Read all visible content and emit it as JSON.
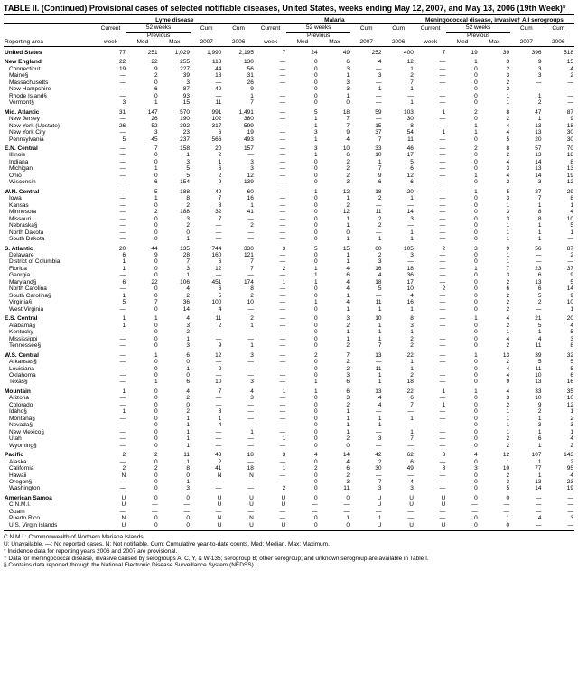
{
  "title": "TABLE II. (Continued) Provisional cases of selected notifiable diseases, United States, weeks ending May 12, 2007, and May 13, 2006 (19th Week)*",
  "diseases": [
    "Lyme disease",
    "Malaria",
    "Meningococcal disease, invasive†\nAll serogroups"
  ],
  "subheaders": {
    "current": "Current",
    "previous": "Previous",
    "weeks52": "52 weeks",
    "cum": "Cum"
  },
  "colheaders": [
    "Reporting area",
    "week",
    "Med",
    "Max",
    "2007",
    "2006",
    "week",
    "Med",
    "Max",
    "2007",
    "2006",
    "week",
    "Med",
    "Max",
    "2007",
    "2006"
  ],
  "rows": [
    {
      "r": 1,
      "a": "United States",
      "v": [
        "77",
        "251",
        "1,029",
        "1,990",
        "2,195",
        "7",
        "24",
        "49",
        "252",
        "400",
        "7",
        "19",
        "39",
        "396",
        "518"
      ]
    },
    {
      "r": 1,
      "a": "New England",
      "v": [
        "22",
        "22",
        "255",
        "113",
        "130",
        "—",
        "0",
        "6",
        "4",
        "12",
        "—",
        "1",
        "3",
        "9",
        "15"
      ]
    },
    {
      "r": 0,
      "a": "Connecticut",
      "v": [
        "19",
        "9",
        "227",
        "44",
        "56",
        "—",
        "0",
        "3",
        "—",
        "1",
        "—",
        "0",
        "2",
        "3",
        "4"
      ]
    },
    {
      "r": 0,
      "a": "Maine§",
      "v": [
        "—",
        "2",
        "39",
        "18",
        "31",
        "—",
        "0",
        "1",
        "3",
        "2",
        "—",
        "0",
        "3",
        "3",
        "2"
      ]
    },
    {
      "r": 0,
      "a": "Massachusetts",
      "v": [
        "—",
        "0",
        "3",
        "—",
        "26",
        "—",
        "0",
        "3",
        "—",
        "7",
        "—",
        "0",
        "2",
        "—",
        "—"
      ]
    },
    {
      "r": 0,
      "a": "New Hampshire",
      "v": [
        "—",
        "6",
        "87",
        "40",
        "9",
        "—",
        "0",
        "3",
        "1",
        "1",
        "—",
        "0",
        "2",
        "—",
        "—"
      ]
    },
    {
      "r": 0,
      "a": "Rhode Island§",
      "v": [
        "—",
        "0",
        "93",
        "—",
        "1",
        "—",
        "0",
        "1",
        "—",
        "—",
        "—",
        "0",
        "1",
        "1",
        "—"
      ]
    },
    {
      "r": 0,
      "a": "Vermont§",
      "v": [
        "3",
        "1",
        "15",
        "11",
        "7",
        "—",
        "0",
        "0",
        "—",
        "1",
        "—",
        "0",
        "1",
        "2",
        "—"
      ]
    },
    {
      "r": 1,
      "a": "Mid. Atlantic",
      "v": [
        "31",
        "147",
        "570",
        "991",
        "1,491",
        "—",
        "5",
        "18",
        "59",
        "103",
        "1",
        "2",
        "8",
        "47",
        "87"
      ]
    },
    {
      "r": 0,
      "a": "New Jersey",
      "v": [
        "—",
        "26",
        "190",
        "102",
        "380",
        "—",
        "1",
        "7",
        "—",
        "30",
        "—",
        "0",
        "2",
        "1",
        "9"
      ]
    },
    {
      "r": 0,
      "a": "New York (Upstate)",
      "v": [
        "26",
        "52",
        "392",
        "317",
        "599",
        "—",
        "1",
        "7",
        "15",
        "8",
        "—",
        "1",
        "4",
        "13",
        "18"
      ]
    },
    {
      "r": 0,
      "a": "New York City",
      "v": [
        "—",
        "3",
        "23",
        "6",
        "19",
        "—",
        "3",
        "9",
        "37",
        "54",
        "1",
        "1",
        "4",
        "13",
        "30"
      ]
    },
    {
      "r": 0,
      "a": "Pennsylvania",
      "v": [
        "5",
        "45",
        "237",
        "566",
        "493",
        "—",
        "1",
        "4",
        "7",
        "11",
        "—",
        "0",
        "5",
        "20",
        "30"
      ]
    },
    {
      "r": 1,
      "a": "E.N. Central",
      "v": [
        "—",
        "7",
        "158",
        "20",
        "157",
        "—",
        "3",
        "10",
        "33",
        "46",
        "—",
        "2",
        "8",
        "57",
        "70"
      ]
    },
    {
      "r": 0,
      "a": "Illinois",
      "v": [
        "—",
        "0",
        "1",
        "2",
        "—",
        "—",
        "1",
        "6",
        "10",
        "17",
        "—",
        "0",
        "2",
        "13",
        "18"
      ]
    },
    {
      "r": 0,
      "a": "Indiana",
      "v": [
        "—",
        "0",
        "3",
        "1",
        "3",
        "—",
        "0",
        "2",
        "1",
        "5",
        "—",
        "0",
        "4",
        "14",
        "8"
      ]
    },
    {
      "r": 0,
      "a": "Michigan",
      "v": [
        "—",
        "1",
        "5",
        "6",
        "3",
        "—",
        "0",
        "2",
        "7",
        "6",
        "—",
        "0",
        "3",
        "13",
        "13"
      ]
    },
    {
      "r": 0,
      "a": "Ohio",
      "v": [
        "—",
        "0",
        "5",
        "2",
        "12",
        "—",
        "0",
        "2",
        "9",
        "12",
        "—",
        "1",
        "4",
        "14",
        "19"
      ]
    },
    {
      "r": 0,
      "a": "Wisconsin",
      "v": [
        "—",
        "6",
        "154",
        "9",
        "139",
        "—",
        "0",
        "3",
        "6",
        "6",
        "—",
        "0",
        "2",
        "3",
        "12"
      ]
    },
    {
      "r": 1,
      "a": "W.N. Central",
      "v": [
        "—",
        "5",
        "188",
        "49",
        "60",
        "—",
        "1",
        "12",
        "18",
        "20",
        "—",
        "1",
        "5",
        "27",
        "29"
      ]
    },
    {
      "r": 0,
      "a": "Iowa",
      "v": [
        "—",
        "1",
        "8",
        "7",
        "16",
        "—",
        "0",
        "1",
        "2",
        "1",
        "—",
        "0",
        "3",
        "7",
        "8"
      ]
    },
    {
      "r": 0,
      "a": "Kansas",
      "v": [
        "—",
        "0",
        "2",
        "3",
        "1",
        "—",
        "0",
        "2",
        "—",
        "—",
        "—",
        "0",
        "1",
        "1",
        "1"
      ]
    },
    {
      "r": 0,
      "a": "Minnesota",
      "v": [
        "—",
        "2",
        "188",
        "32",
        "41",
        "—",
        "0",
        "12",
        "11",
        "14",
        "—",
        "0",
        "3",
        "8",
        "4"
      ]
    },
    {
      "r": 0,
      "a": "Missouri",
      "v": [
        "—",
        "0",
        "3",
        "7",
        "—",
        "—",
        "0",
        "1",
        "2",
        "3",
        "—",
        "0",
        "3",
        "8",
        "10"
      ]
    },
    {
      "r": 0,
      "a": "Nebraska§",
      "v": [
        "—",
        "0",
        "2",
        "—",
        "2",
        "—",
        "0",
        "1",
        "2",
        "—",
        "—",
        "0",
        "1",
        "1",
        "5"
      ]
    },
    {
      "r": 0,
      "a": "North Dakota",
      "v": [
        "—",
        "0",
        "0",
        "—",
        "—",
        "—",
        "0",
        "0",
        "—",
        "1",
        "—",
        "0",
        "1",
        "1",
        "1"
      ]
    },
    {
      "r": 0,
      "a": "South Dakota",
      "v": [
        "—",
        "0",
        "1",
        "—",
        "—",
        "—",
        "0",
        "1",
        "1",
        "1",
        "—",
        "0",
        "1",
        "1",
        "—"
      ]
    },
    {
      "r": 1,
      "a": "S. Atlantic",
      "v": [
        "20",
        "44",
        "135",
        "744",
        "330",
        "3",
        "5",
        "15",
        "60",
        "105",
        "2",
        "3",
        "9",
        "56",
        "87"
      ]
    },
    {
      "r": 0,
      "a": "Delaware",
      "v": [
        "6",
        "9",
        "28",
        "160",
        "121",
        "—",
        "0",
        "1",
        "2",
        "3",
        "—",
        "0",
        "1",
        "—",
        "2"
      ]
    },
    {
      "r": 0,
      "a": "District of Columbia",
      "v": [
        "1",
        "0",
        "7",
        "6",
        "7",
        "—",
        "0",
        "1",
        "3",
        "—",
        "—",
        "0",
        "1",
        "—",
        "—"
      ]
    },
    {
      "r": 0,
      "a": "Florida",
      "v": [
        "1",
        "0",
        "3",
        "12",
        "7",
        "2",
        "1",
        "4",
        "16",
        "18",
        "—",
        "1",
        "7",
        "23",
        "37"
      ]
    },
    {
      "r": 0,
      "a": "Georgia",
      "v": [
        "—",
        "0",
        "1",
        "—",
        "—",
        "—",
        "1",
        "6",
        "4",
        "36",
        "—",
        "0",
        "3",
        "6",
        "9"
      ]
    },
    {
      "r": 0,
      "a": "Maryland§",
      "v": [
        "6",
        "22",
        "106",
        "451",
        "174",
        "1",
        "1",
        "4",
        "18",
        "17",
        "—",
        "0",
        "2",
        "13",
        "5"
      ]
    },
    {
      "r": 0,
      "a": "North Carolina",
      "v": [
        "—",
        "0",
        "4",
        "6",
        "8",
        "—",
        "0",
        "4",
        "5",
        "10",
        "2",
        "0",
        "6",
        "6",
        "14"
      ]
    },
    {
      "r": 0,
      "a": "South Carolina§",
      "v": [
        "1",
        "0",
        "2",
        "5",
        "2",
        "—",
        "0",
        "1",
        "—",
        "4",
        "—",
        "0",
        "2",
        "5",
        "9"
      ]
    },
    {
      "r": 0,
      "a": "Virginia§",
      "v": [
        "5",
        "7",
        "36",
        "100",
        "10",
        "—",
        "1",
        "4",
        "11",
        "16",
        "—",
        "0",
        "2",
        "2",
        "10"
      ]
    },
    {
      "r": 0,
      "a": "West Virginia",
      "v": [
        "—",
        "0",
        "14",
        "4",
        "—",
        "—",
        "0",
        "1",
        "1",
        "1",
        "—",
        "0",
        "2",
        "—",
        "1"
      ]
    },
    {
      "r": 1,
      "a": "E.S. Central",
      "v": [
        "1",
        "1",
        "4",
        "11",
        "2",
        "—",
        "0",
        "3",
        "10",
        "8",
        "—",
        "1",
        "4",
        "21",
        "20"
      ]
    },
    {
      "r": 0,
      "a": "Alabama§",
      "v": [
        "1",
        "0",
        "3",
        "2",
        "1",
        "—",
        "0",
        "2",
        "1",
        "3",
        "—",
        "0",
        "2",
        "5",
        "4"
      ]
    },
    {
      "r": 0,
      "a": "Kentucky",
      "v": [
        "—",
        "0",
        "2",
        "—",
        "—",
        "—",
        "0",
        "1",
        "1",
        "1",
        "—",
        "0",
        "1",
        "1",
        "5"
      ]
    },
    {
      "r": 0,
      "a": "Mississippi",
      "v": [
        "—",
        "0",
        "1",
        "—",
        "—",
        "—",
        "0",
        "1",
        "1",
        "2",
        "—",
        "0",
        "4",
        "4",
        "3"
      ]
    },
    {
      "r": 0,
      "a": "Tennessee§",
      "v": [
        "—",
        "0",
        "3",
        "9",
        "1",
        "—",
        "0",
        "2",
        "7",
        "2",
        "—",
        "0",
        "2",
        "11",
        "8"
      ]
    },
    {
      "r": 1,
      "a": "W.S. Central",
      "v": [
        "—",
        "1",
        "6",
        "12",
        "3",
        "—",
        "2",
        "7",
        "13",
        "22",
        "—",
        "1",
        "13",
        "39",
        "32"
      ]
    },
    {
      "r": 0,
      "a": "Arkansas§",
      "v": [
        "—",
        "0",
        "0",
        "—",
        "—",
        "—",
        "0",
        "2",
        "—",
        "1",
        "—",
        "0",
        "2",
        "5",
        "5"
      ]
    },
    {
      "r": 0,
      "a": "Louisiana",
      "v": [
        "—",
        "0",
        "1",
        "2",
        "—",
        "—",
        "0",
        "2",
        "11",
        "1",
        "—",
        "0",
        "4",
        "11",
        "5"
      ]
    },
    {
      "r": 0,
      "a": "Oklahoma",
      "v": [
        "—",
        "0",
        "0",
        "—",
        "—",
        "—",
        "0",
        "3",
        "1",
        "2",
        "—",
        "0",
        "4",
        "10",
        "6"
      ]
    },
    {
      "r": 0,
      "a": "Texas§",
      "v": [
        "—",
        "1",
        "6",
        "10",
        "3",
        "—",
        "1",
        "6",
        "1",
        "18",
        "—",
        "0",
        "9",
        "13",
        "16"
      ]
    },
    {
      "r": 1,
      "a": "Mountain",
      "v": [
        "1",
        "0",
        "4",
        "7",
        "4",
        "1",
        "1",
        "6",
        "13",
        "22",
        "1",
        "1",
        "4",
        "33",
        "35"
      ]
    },
    {
      "r": 0,
      "a": "Arizona",
      "v": [
        "—",
        "0",
        "2",
        "—",
        "3",
        "—",
        "0",
        "3",
        "4",
        "6",
        "—",
        "0",
        "3",
        "10",
        "10"
      ]
    },
    {
      "r": 0,
      "a": "Colorado",
      "v": [
        "—",
        "0",
        "0",
        "—",
        "—",
        "—",
        "0",
        "2",
        "4",
        "7",
        "1",
        "0",
        "2",
        "9",
        "12"
      ]
    },
    {
      "r": 0,
      "a": "Idaho§",
      "v": [
        "1",
        "0",
        "2",
        "3",
        "—",
        "—",
        "0",
        "1",
        "—",
        "—",
        "—",
        "0",
        "1",
        "2",
        "1"
      ]
    },
    {
      "r": 0,
      "a": "Montana§",
      "v": [
        "—",
        "0",
        "1",
        "1",
        "—",
        "—",
        "0",
        "1",
        "1",
        "1",
        "—",
        "0",
        "1",
        "1",
        "2"
      ]
    },
    {
      "r": 0,
      "a": "Nevada§",
      "v": [
        "—",
        "0",
        "1",
        "4",
        "—",
        "—",
        "0",
        "1",
        "1",
        "—",
        "—",
        "0",
        "1",
        "3",
        "3"
      ]
    },
    {
      "r": 0,
      "a": "New Mexico§",
      "v": [
        "—",
        "0",
        "1",
        "—",
        "1",
        "—",
        "0",
        "1",
        "—",
        "1",
        "—",
        "0",
        "1",
        "1",
        "1"
      ]
    },
    {
      "r": 0,
      "a": "Utah",
      "v": [
        "—",
        "0",
        "1",
        "—",
        "—",
        "1",
        "0",
        "2",
        "3",
        "7",
        "—",
        "0",
        "2",
        "6",
        "4"
      ]
    },
    {
      "r": 0,
      "a": "Wyoming§",
      "v": [
        "—",
        "0",
        "1",
        "—",
        "—",
        "—",
        "0",
        "0",
        "—",
        "—",
        "—",
        "0",
        "2",
        "1",
        "2"
      ]
    },
    {
      "r": 1,
      "a": "Pacific",
      "v": [
        "2",
        "2",
        "11",
        "43",
        "18",
        "3",
        "4",
        "14",
        "42",
        "62",
        "3",
        "4",
        "12",
        "107",
        "143"
      ]
    },
    {
      "r": 0,
      "a": "Alaska",
      "v": [
        "—",
        "0",
        "1",
        "2",
        "—",
        "—",
        "0",
        "4",
        "2",
        "6",
        "—",
        "0",
        "1",
        "1",
        "2"
      ]
    },
    {
      "r": 0,
      "a": "California",
      "v": [
        "2",
        "2",
        "8",
        "41",
        "18",
        "1",
        "2",
        "6",
        "30",
        "49",
        "3",
        "3",
        "10",
        "77",
        "95"
      ]
    },
    {
      "r": 0,
      "a": "Hawaii",
      "v": [
        "N",
        "0",
        "0",
        "N",
        "N",
        "—",
        "0",
        "2",
        "—",
        "—",
        "—",
        "0",
        "2",
        "1",
        "4"
      ]
    },
    {
      "r": 0,
      "a": "Oregon§",
      "v": [
        "—",
        "0",
        "1",
        "—",
        "—",
        "—",
        "0",
        "3",
        "7",
        "4",
        "—",
        "0",
        "3",
        "13",
        "23"
      ]
    },
    {
      "r": 0,
      "a": "Washington",
      "v": [
        "—",
        "0",
        "3",
        "—",
        "—",
        "2",
        "0",
        "11",
        "3",
        "3",
        "—",
        "0",
        "5",
        "14",
        "19"
      ]
    },
    {
      "r": 1,
      "a": "American Samoa",
      "v": [
        "U",
        "0",
        "0",
        "U",
        "U",
        "U",
        "0",
        "0",
        "U",
        "U",
        "U",
        "0",
        "0",
        "—",
        "—"
      ]
    },
    {
      "r": 0,
      "a": "C.N.M.I.",
      "v": [
        "U",
        "—",
        "—",
        "U",
        "U",
        "U",
        "—",
        "—",
        "U",
        "U",
        "U",
        "—",
        "—",
        "—",
        "—"
      ]
    },
    {
      "r": 0,
      "a": "Guam",
      "v": [
        "—",
        "—",
        "—",
        "—",
        "—",
        "—",
        "—",
        "—",
        "—",
        "—",
        "—",
        "—",
        "—",
        "—",
        "—"
      ]
    },
    {
      "r": 0,
      "a": "Puerto Rico",
      "v": [
        "N",
        "0",
        "0",
        "N",
        "N",
        "—",
        "0",
        "1",
        "1",
        "—",
        "—",
        "0",
        "1",
        "4",
        "3"
      ]
    },
    {
      "r": 0,
      "a": "U.S. Virgin Islands",
      "v": [
        "U",
        "0",
        "0",
        "U",
        "U",
        "U",
        "0",
        "0",
        "U",
        "U",
        "U",
        "0",
        "0",
        "—",
        "—"
      ]
    }
  ],
  "footnotes": [
    "C.N.M.I.: Commonwealth of Northern Mariana Islands.",
    "U: Unavailable.   —: No reported cases.   N: Not notifiable.   Cum: Cumulative year-to-date counts.   Med: Median.   Max: Maximum.",
    "* Incidence data for reporting years 2006 and 2007 are provisional.",
    "† Data for meningococcal disease, invasive caused by serogroups A, C, Y, & W-135; serogroup B; other serogroup; and unknown serogroup are available in Table I.",
    "§ Contains data reported through the National Electronic Disease Surveillance System (NEDSS)."
  ]
}
